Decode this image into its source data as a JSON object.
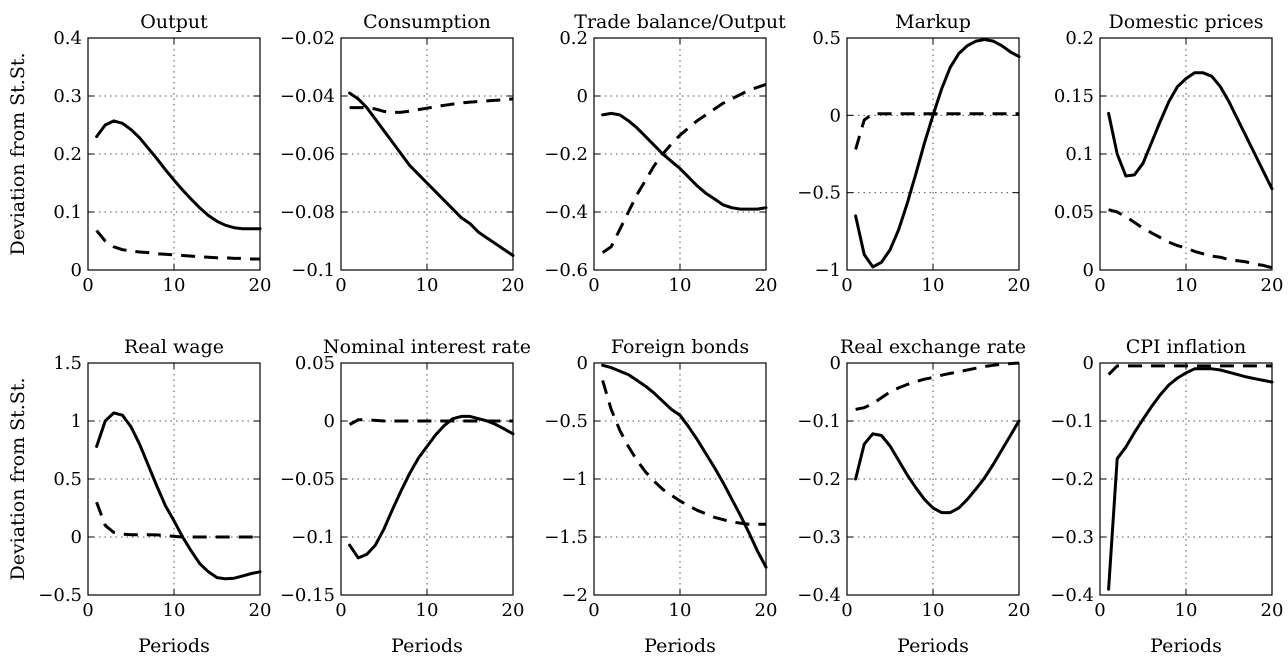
{
  "figure": {
    "ylabel": "Deviation from St.St.",
    "xlabel": "Periods"
  },
  "chart_data": [
    {
      "type": "line",
      "title": "Output",
      "xlim": [
        0,
        20
      ],
      "ylim": [
        0,
        0.4
      ],
      "xticks": [
        0,
        10,
        20
      ],
      "yticks": [
        0,
        0.1,
        0.2,
        0.3,
        0.4
      ],
      "xtick_labels": [
        "0",
        "10",
        "20"
      ],
      "ytick_labels": [
        "0",
        "0.1",
        "0.2",
        "0.3",
        "0.4"
      ],
      "grid": true,
      "x": [
        1,
        2,
        3,
        4,
        5,
        6,
        7,
        8,
        9,
        10,
        11,
        12,
        13,
        14,
        15,
        16,
        17,
        18,
        19,
        20
      ],
      "series": [
        {
          "style": "solid",
          "values": [
            0.23,
            0.25,
            0.257,
            0.253,
            0.242,
            0.228,
            0.21,
            0.192,
            0.173,
            0.155,
            0.138,
            0.122,
            0.107,
            0.094,
            0.084,
            0.077,
            0.073,
            0.071,
            0.071,
            0.071
          ]
        },
        {
          "style": "dashed",
          "values": [
            0.068,
            0.05,
            0.04,
            0.035,
            0.033,
            0.031,
            0.03,
            0.028,
            0.027,
            0.026,
            0.025,
            0.024,
            0.023,
            0.022,
            0.021,
            0.021,
            0.02,
            0.02,
            0.019,
            0.019
          ]
        }
      ]
    },
    {
      "type": "line",
      "title": "Consumption",
      "xlim": [
        0,
        20
      ],
      "ylim": [
        -0.1,
        -0.02
      ],
      "xticks": [
        0,
        10,
        20
      ],
      "yticks": [
        -0.1,
        -0.08,
        -0.06,
        -0.04,
        -0.02
      ],
      "xtick_labels": [
        "0",
        "10",
        "20"
      ],
      "ytick_labels": [
        "−0.1",
        "−0.08",
        "−0.06",
        "−0.04",
        "−0.02"
      ],
      "grid": true,
      "x": [
        1,
        2,
        3,
        4,
        5,
        6,
        7,
        8,
        9,
        10,
        11,
        12,
        13,
        14,
        15,
        16,
        17,
        18,
        19,
        20
      ],
      "series": [
        {
          "style": "solid",
          "values": [
            -0.039,
            -0.041,
            -0.044,
            -0.048,
            -0.052,
            -0.056,
            -0.06,
            -0.064,
            -0.067,
            -0.07,
            -0.073,
            -0.076,
            -0.079,
            -0.082,
            -0.084,
            -0.087,
            -0.089,
            -0.091,
            -0.093,
            -0.095
          ]
        },
        {
          "style": "dashed",
          "values": [
            -0.044,
            -0.044,
            -0.044,
            -0.0445,
            -0.0453,
            -0.0457,
            -0.0456,
            -0.0452,
            -0.0447,
            -0.0442,
            -0.0437,
            -0.0432,
            -0.0428,
            -0.0424,
            -0.0421,
            -0.0419,
            -0.0417,
            -0.0415,
            -0.0413,
            -0.041
          ]
        }
      ]
    },
    {
      "type": "line",
      "title": "Trade balance/Output",
      "xlim": [
        0,
        20
      ],
      "ylim": [
        -0.6,
        0.2
      ],
      "xticks": [
        0,
        10,
        20
      ],
      "yticks": [
        -0.6,
        -0.4,
        -0.2,
        0,
        0.2
      ],
      "xtick_labels": [
        "0",
        "10",
        "20"
      ],
      "ytick_labels": [
        "−0.6",
        "−0.4",
        "−0.2",
        "0",
        "0.2"
      ],
      "grid": true,
      "x": [
        1,
        2,
        3,
        4,
        5,
        6,
        7,
        8,
        9,
        10,
        11,
        12,
        13,
        14,
        15,
        16,
        17,
        18,
        19,
        20
      ],
      "series": [
        {
          "style": "solid",
          "values": [
            -0.065,
            -0.06,
            -0.065,
            -0.085,
            -0.11,
            -0.14,
            -0.17,
            -0.2,
            -0.225,
            -0.25,
            -0.28,
            -0.31,
            -0.335,
            -0.355,
            -0.375,
            -0.385,
            -0.39,
            -0.39,
            -0.39,
            -0.385
          ]
        },
        {
          "style": "dashed",
          "values": [
            -0.54,
            -0.52,
            -0.46,
            -0.4,
            -0.34,
            -0.29,
            -0.24,
            -0.2,
            -0.165,
            -0.135,
            -0.11,
            -0.085,
            -0.065,
            -0.045,
            -0.025,
            -0.01,
            0.005,
            0.02,
            0.03,
            0.04
          ]
        }
      ]
    },
    {
      "type": "line",
      "title": "Markup",
      "xlim": [
        0,
        20
      ],
      "ylim": [
        -1,
        0.5
      ],
      "xticks": [
        0,
        10,
        20
      ],
      "yticks": [
        -1,
        -0.5,
        0,
        0.5
      ],
      "xtick_labels": [
        "0",
        "10",
        "20"
      ],
      "ytick_labels": [
        "−1",
        "−0.5",
        "0",
        "0.5"
      ],
      "grid": true,
      "x": [
        1,
        2,
        3,
        4,
        5,
        6,
        7,
        8,
        9,
        10,
        11,
        12,
        13,
        14,
        15,
        16,
        17,
        18,
        19,
        20
      ],
      "series": [
        {
          "style": "solid",
          "values": [
            -0.65,
            -0.9,
            -0.98,
            -0.95,
            -0.87,
            -0.74,
            -0.57,
            -0.38,
            -0.18,
            0.0,
            0.17,
            0.31,
            0.4,
            0.45,
            0.48,
            0.49,
            0.48,
            0.45,
            0.41,
            0.38
          ]
        },
        {
          "style": "dashed",
          "values": [
            -0.22,
            -0.03,
            0.01,
            0.01,
            0.01,
            0.01,
            0.01,
            0.01,
            0.01,
            0.01,
            0.01,
            0.01,
            0.01,
            0.01,
            0.01,
            0.01,
            0.01,
            0.01,
            0.01,
            0.01
          ]
        }
      ]
    },
    {
      "type": "line",
      "title": "Domestic prices",
      "xlim": [
        0,
        20
      ],
      "ylim": [
        0,
        0.2
      ],
      "xticks": [
        0,
        10,
        20
      ],
      "yticks": [
        0,
        0.05,
        0.1,
        0.15,
        0.2
      ],
      "xtick_labels": [
        "0",
        "10",
        "20"
      ],
      "ytick_labels": [
        "0",
        "0.05",
        "0.1",
        "0.15",
        "0.2"
      ],
      "grid": true,
      "x": [
        1,
        2,
        3,
        4,
        5,
        6,
        7,
        8,
        9,
        10,
        11,
        12,
        13,
        14,
        15,
        16,
        17,
        18,
        19,
        20
      ],
      "series": [
        {
          "style": "solid",
          "values": [
            0.135,
            0.1,
            0.081,
            0.082,
            0.092,
            0.11,
            0.128,
            0.145,
            0.158,
            0.165,
            0.17,
            0.17,
            0.167,
            0.158,
            0.145,
            0.13,
            0.115,
            0.1,
            0.085,
            0.07
          ]
        },
        {
          "style": "dashed",
          "values": [
            0.052,
            0.05,
            0.046,
            0.041,
            0.036,
            0.032,
            0.028,
            0.024,
            0.021,
            0.019,
            0.016,
            0.014,
            0.012,
            0.011,
            0.009,
            0.008,
            0.007,
            0.005,
            0.004,
            0.002
          ]
        }
      ]
    },
    {
      "type": "line",
      "title": "Real wage",
      "xlim": [
        0,
        20
      ],
      "ylim": [
        -0.5,
        1.5
      ],
      "xticks": [
        0,
        10,
        20
      ],
      "yticks": [
        -0.5,
        0,
        0.5,
        1,
        1.5
      ],
      "xtick_labels": [
        "0",
        "10",
        "20"
      ],
      "ytick_labels": [
        "−0.5",
        "0",
        "0.5",
        "1",
        "1.5"
      ],
      "grid": true,
      "x": [
        1,
        2,
        3,
        4,
        5,
        6,
        7,
        8,
        9,
        10,
        11,
        12,
        13,
        14,
        15,
        16,
        17,
        18,
        19,
        20
      ],
      "series": [
        {
          "style": "solid",
          "values": [
            0.78,
            1.0,
            1.07,
            1.05,
            0.95,
            0.8,
            0.62,
            0.44,
            0.27,
            0.14,
            0.0,
            -0.12,
            -0.23,
            -0.3,
            -0.35,
            -0.36,
            -0.355,
            -0.335,
            -0.315,
            -0.3
          ]
        },
        {
          "style": "dashed",
          "values": [
            0.3,
            0.1,
            0.04,
            0.025,
            0.02,
            0.02,
            0.02,
            0.018,
            0.012,
            0.005,
            0.0,
            0.0,
            0.0,
            0.0,
            0.0,
            0.0,
            0.0,
            0.0,
            0.0,
            0.0
          ]
        }
      ]
    },
    {
      "type": "line",
      "title": "Nominal interest rate",
      "xlim": [
        0,
        20
      ],
      "ylim": [
        -0.15,
        0.05
      ],
      "xticks": [
        0,
        10,
        20
      ],
      "yticks": [
        -0.15,
        -0.1,
        -0.05,
        0,
        0.05
      ],
      "xtick_labels": [
        "0",
        "10",
        "20"
      ],
      "ytick_labels": [
        "−0.15",
        "−0.1",
        "−0.05",
        "0",
        "0.05"
      ],
      "grid": true,
      "x": [
        1,
        2,
        3,
        4,
        5,
        6,
        7,
        8,
        9,
        10,
        11,
        12,
        13,
        14,
        15,
        16,
        17,
        18,
        19,
        20
      ],
      "series": [
        {
          "style": "solid",
          "values": [
            -0.107,
            -0.118,
            -0.115,
            -0.107,
            -0.093,
            -0.076,
            -0.06,
            -0.045,
            -0.032,
            -0.022,
            -0.012,
            -0.004,
            0.002,
            0.004,
            0.004,
            0.002,
            0.0,
            -0.003,
            -0.007,
            -0.011
          ]
        },
        {
          "style": "dashed",
          "values": [
            -0.003,
            0.001,
            0.001,
            0.0005,
            0.0,
            0.0,
            0.0,
            0.0,
            0.0,
            0.0,
            0.0,
            0.0,
            0.0,
            0.0,
            0.0,
            0.0,
            0.0,
            0.0,
            0.0,
            0.0
          ]
        }
      ]
    },
    {
      "type": "line",
      "title": "Foreign bonds",
      "xlim": [
        0,
        20
      ],
      "ylim": [
        -2,
        0
      ],
      "xticks": [
        0,
        10,
        20
      ],
      "yticks": [
        -2,
        -1.5,
        -1,
        -0.5,
        0
      ],
      "xtick_labels": [
        "0",
        "10",
        "20"
      ],
      "ytick_labels": [
        "−2",
        "−1.5",
        "−1",
        "−0.5",
        "0"
      ],
      "grid": true,
      "x": [
        1,
        2,
        3,
        4,
        5,
        6,
        7,
        8,
        9,
        10,
        11,
        12,
        13,
        14,
        15,
        16,
        17,
        18,
        19,
        20
      ],
      "series": [
        {
          "style": "solid",
          "values": [
            -0.02,
            -0.04,
            -0.07,
            -0.1,
            -0.15,
            -0.2,
            -0.26,
            -0.33,
            -0.4,
            -0.45,
            -0.55,
            -0.66,
            -0.78,
            -0.9,
            -1.03,
            -1.17,
            -1.31,
            -1.46,
            -1.62,
            -1.76
          ]
        },
        {
          "style": "dashed",
          "values": [
            -0.15,
            -0.4,
            -0.58,
            -0.72,
            -0.84,
            -0.94,
            -1.02,
            -1.09,
            -1.14,
            -1.19,
            -1.23,
            -1.27,
            -1.3,
            -1.33,
            -1.35,
            -1.37,
            -1.38,
            -1.39,
            -1.39,
            -1.39
          ]
        }
      ]
    },
    {
      "type": "line",
      "title": "Real exchange rate",
      "xlim": [
        0,
        20
      ],
      "ylim": [
        -0.4,
        0
      ],
      "xticks": [
        0,
        10,
        20
      ],
      "yticks": [
        -0.4,
        -0.3,
        -0.2,
        -0.1,
        0
      ],
      "xtick_labels": [
        "0",
        "10",
        "20"
      ],
      "ytick_labels": [
        "−0.4",
        "−0.3",
        "−0.2",
        "−0.1",
        "0"
      ],
      "grid": true,
      "x": [
        1,
        2,
        3,
        4,
        5,
        6,
        7,
        8,
        9,
        10,
        11,
        12,
        13,
        14,
        15,
        16,
        17,
        18,
        19,
        20
      ],
      "series": [
        {
          "style": "solid",
          "values": [
            -0.2,
            -0.14,
            -0.122,
            -0.125,
            -0.143,
            -0.168,
            -0.193,
            -0.215,
            -0.235,
            -0.25,
            -0.258,
            -0.258,
            -0.25,
            -0.235,
            -0.217,
            -0.198,
            -0.175,
            -0.15,
            -0.125,
            -0.1
          ]
        },
        {
          "style": "dashed",
          "values": [
            -0.08,
            -0.077,
            -0.07,
            -0.06,
            -0.05,
            -0.043,
            -0.037,
            -0.032,
            -0.028,
            -0.025,
            -0.021,
            -0.018,
            -0.015,
            -0.012,
            -0.009,
            -0.006,
            -0.004,
            -0.002,
            -0.001,
            0.0
          ]
        }
      ]
    },
    {
      "type": "line",
      "title": "CPI inflation",
      "xlim": [
        0,
        20
      ],
      "ylim": [
        -0.4,
        0
      ],
      "xticks": [
        0,
        10,
        20
      ],
      "yticks": [
        -0.4,
        -0.3,
        -0.2,
        -0.1,
        0
      ],
      "xtick_labels": [
        "0",
        "10",
        "20"
      ],
      "ytick_labels": [
        "−0.4",
        "−0.3",
        "−0.2",
        "−0.1",
        "0"
      ],
      "grid": true,
      "x": [
        1,
        2,
        3,
        4,
        5,
        6,
        7,
        8,
        9,
        10,
        11,
        12,
        13,
        14,
        15,
        16,
        17,
        18,
        19,
        20
      ],
      "series": [
        {
          "style": "solid",
          "values": [
            -0.39,
            -0.165,
            -0.145,
            -0.12,
            -0.097,
            -0.075,
            -0.055,
            -0.038,
            -0.026,
            -0.017,
            -0.01,
            -0.01,
            -0.01,
            -0.012,
            -0.016,
            -0.02,
            -0.024,
            -0.027,
            -0.03,
            -0.033
          ]
        },
        {
          "style": "dashed",
          "values": [
            -0.02,
            -0.005,
            -0.005,
            -0.005,
            -0.005,
            -0.005,
            -0.005,
            -0.005,
            -0.005,
            -0.005,
            -0.005,
            -0.005,
            -0.005,
            -0.005,
            -0.005,
            -0.005,
            -0.005,
            -0.005,
            -0.005,
            -0.005
          ]
        }
      ]
    }
  ]
}
